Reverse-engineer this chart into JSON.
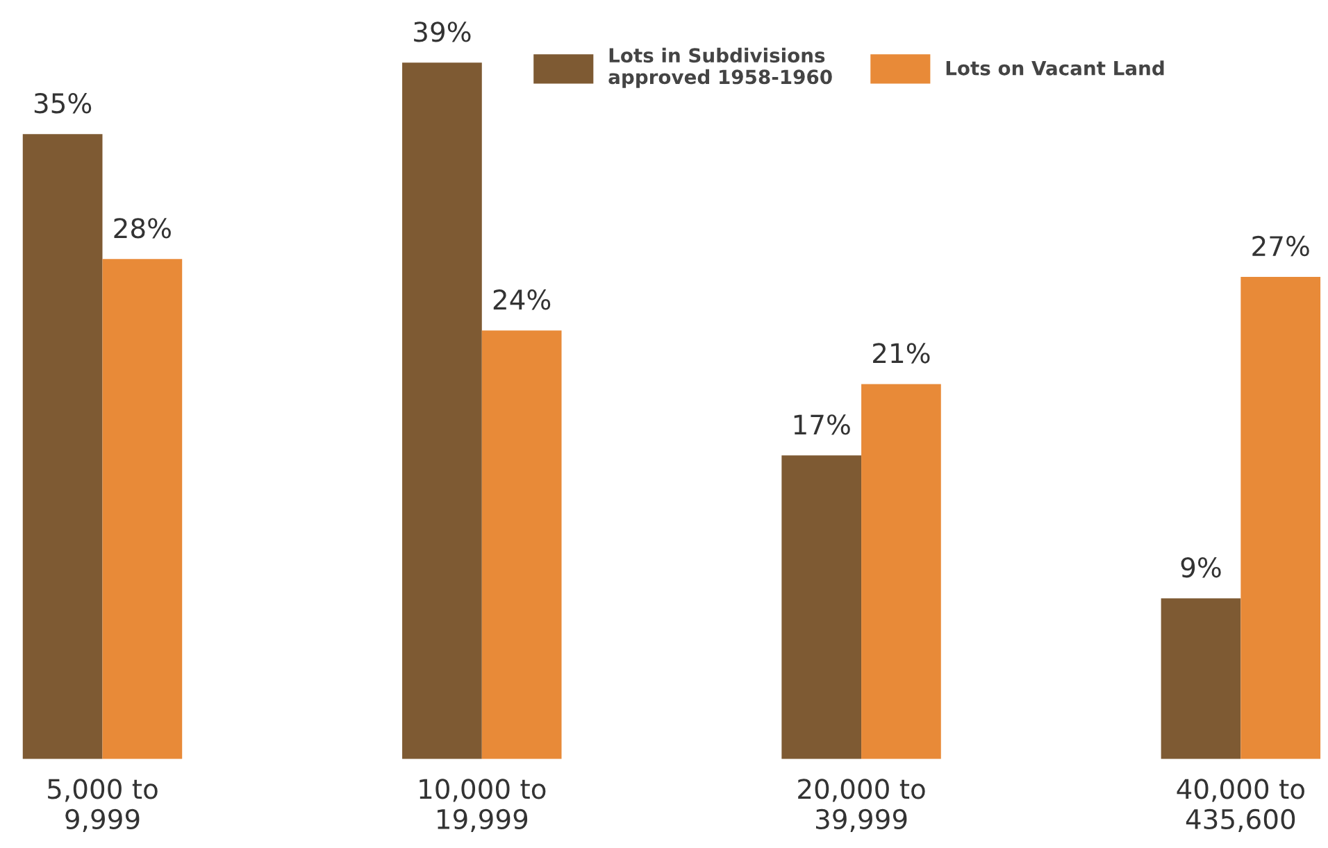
{
  "chart_data": {
    "type": "bar",
    "categories": [
      "5,000 to\n9,999",
      "10,000 to\n19,999",
      "20,000 to\n39,999",
      "40,000 to\n435,600"
    ],
    "series": [
      {
        "name": "Lots in Subdivisions\napproved 1958-1960",
        "color": "#7e5a33",
        "values": [
          35,
          39,
          17,
          9
        ],
        "value_labels": [
          "35%",
          "39%",
          "17%",
          "9%"
        ]
      },
      {
        "name": "Lots on Vacant Land",
        "color": "#e88a38",
        "values": [
          28,
          24,
          21,
          27
        ],
        "value_labels": [
          "28%",
          "24%",
          "21%",
          "27%"
        ]
      }
    ],
    "legend": "top",
    "grid": false
  }
}
